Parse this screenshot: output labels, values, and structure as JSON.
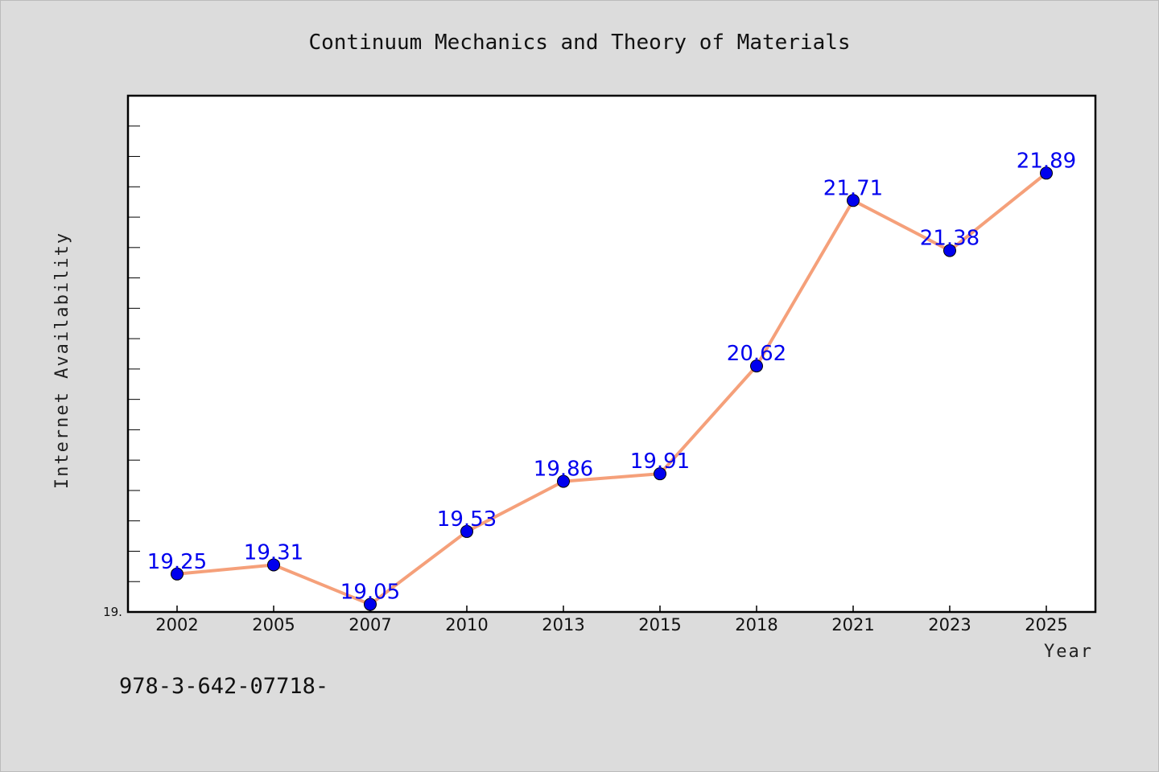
{
  "chart_data": {
    "type": "line",
    "title": "Continuum Mechanics and Theory of Materials",
    "xlabel": "Year",
    "ylabel": "Internet Availability",
    "categories": [
      "2002",
      "2005",
      "2007",
      "2010",
      "2013",
      "2015",
      "2018",
      "2021",
      "2023",
      "2025"
    ],
    "series": [
      {
        "values": [
          19.25,
          19.31,
          19.05,
          19.53,
          19.86,
          19.91,
          20.62,
          21.71,
          21.38,
          21.89
        ],
        "labels": [
          "19.25",
          "19.31",
          "19.05",
          "19.53",
          "19.86",
          "19.91",
          "20.62",
          "21.71",
          "21.38",
          "21.89"
        ],
        "line_color": "#f5a07a",
        "marker_color": "#0000ee"
      }
    ],
    "ylim": [
      19.0,
      22.4
    ],
    "y_tick_label": "19.",
    "grid": false,
    "legend": "none"
  },
  "footnote": "978-3-642-07718-"
}
